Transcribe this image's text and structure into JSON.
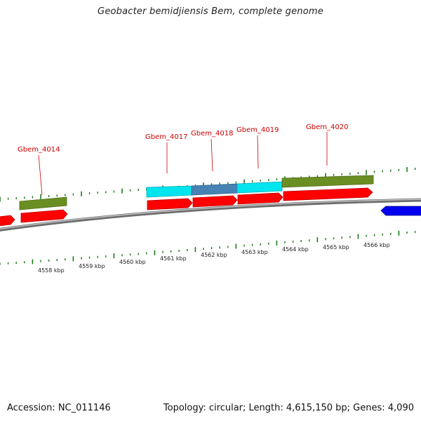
{
  "header": {
    "title": "Geobacter bemidjiensis Bem, complete genome"
  },
  "footer": {
    "accession": "Accession: NC_011146",
    "summary": "Topology: circular; Length: 4,615,150 bp; Genes: 4,090"
  },
  "colors": {
    "gene_label": "#cc0000",
    "cds_arrow": "#ff0000",
    "cds_arrow_reverse": "#0000ee",
    "backbone": "#808080",
    "ticks": "#1a7a1a",
    "feature_olive": "#6b8e23",
    "feature_cyan": "#00e5ee",
    "feature_steelblue": "#4682b4"
  },
  "gene_labels": [
    "Gbem_4014",
    "Gbem_4017",
    "Gbem_4018",
    "Gbem_4019",
    "Gbem_4020"
  ],
  "kbp_labels": [
    "4558 kbp",
    "4559 kbp",
    "4560 kbp",
    "4561 kbp",
    "4562 kbp",
    "4563 kbp",
    "4564 kbp",
    "4565 kbp",
    "4566 kbp"
  ]
}
